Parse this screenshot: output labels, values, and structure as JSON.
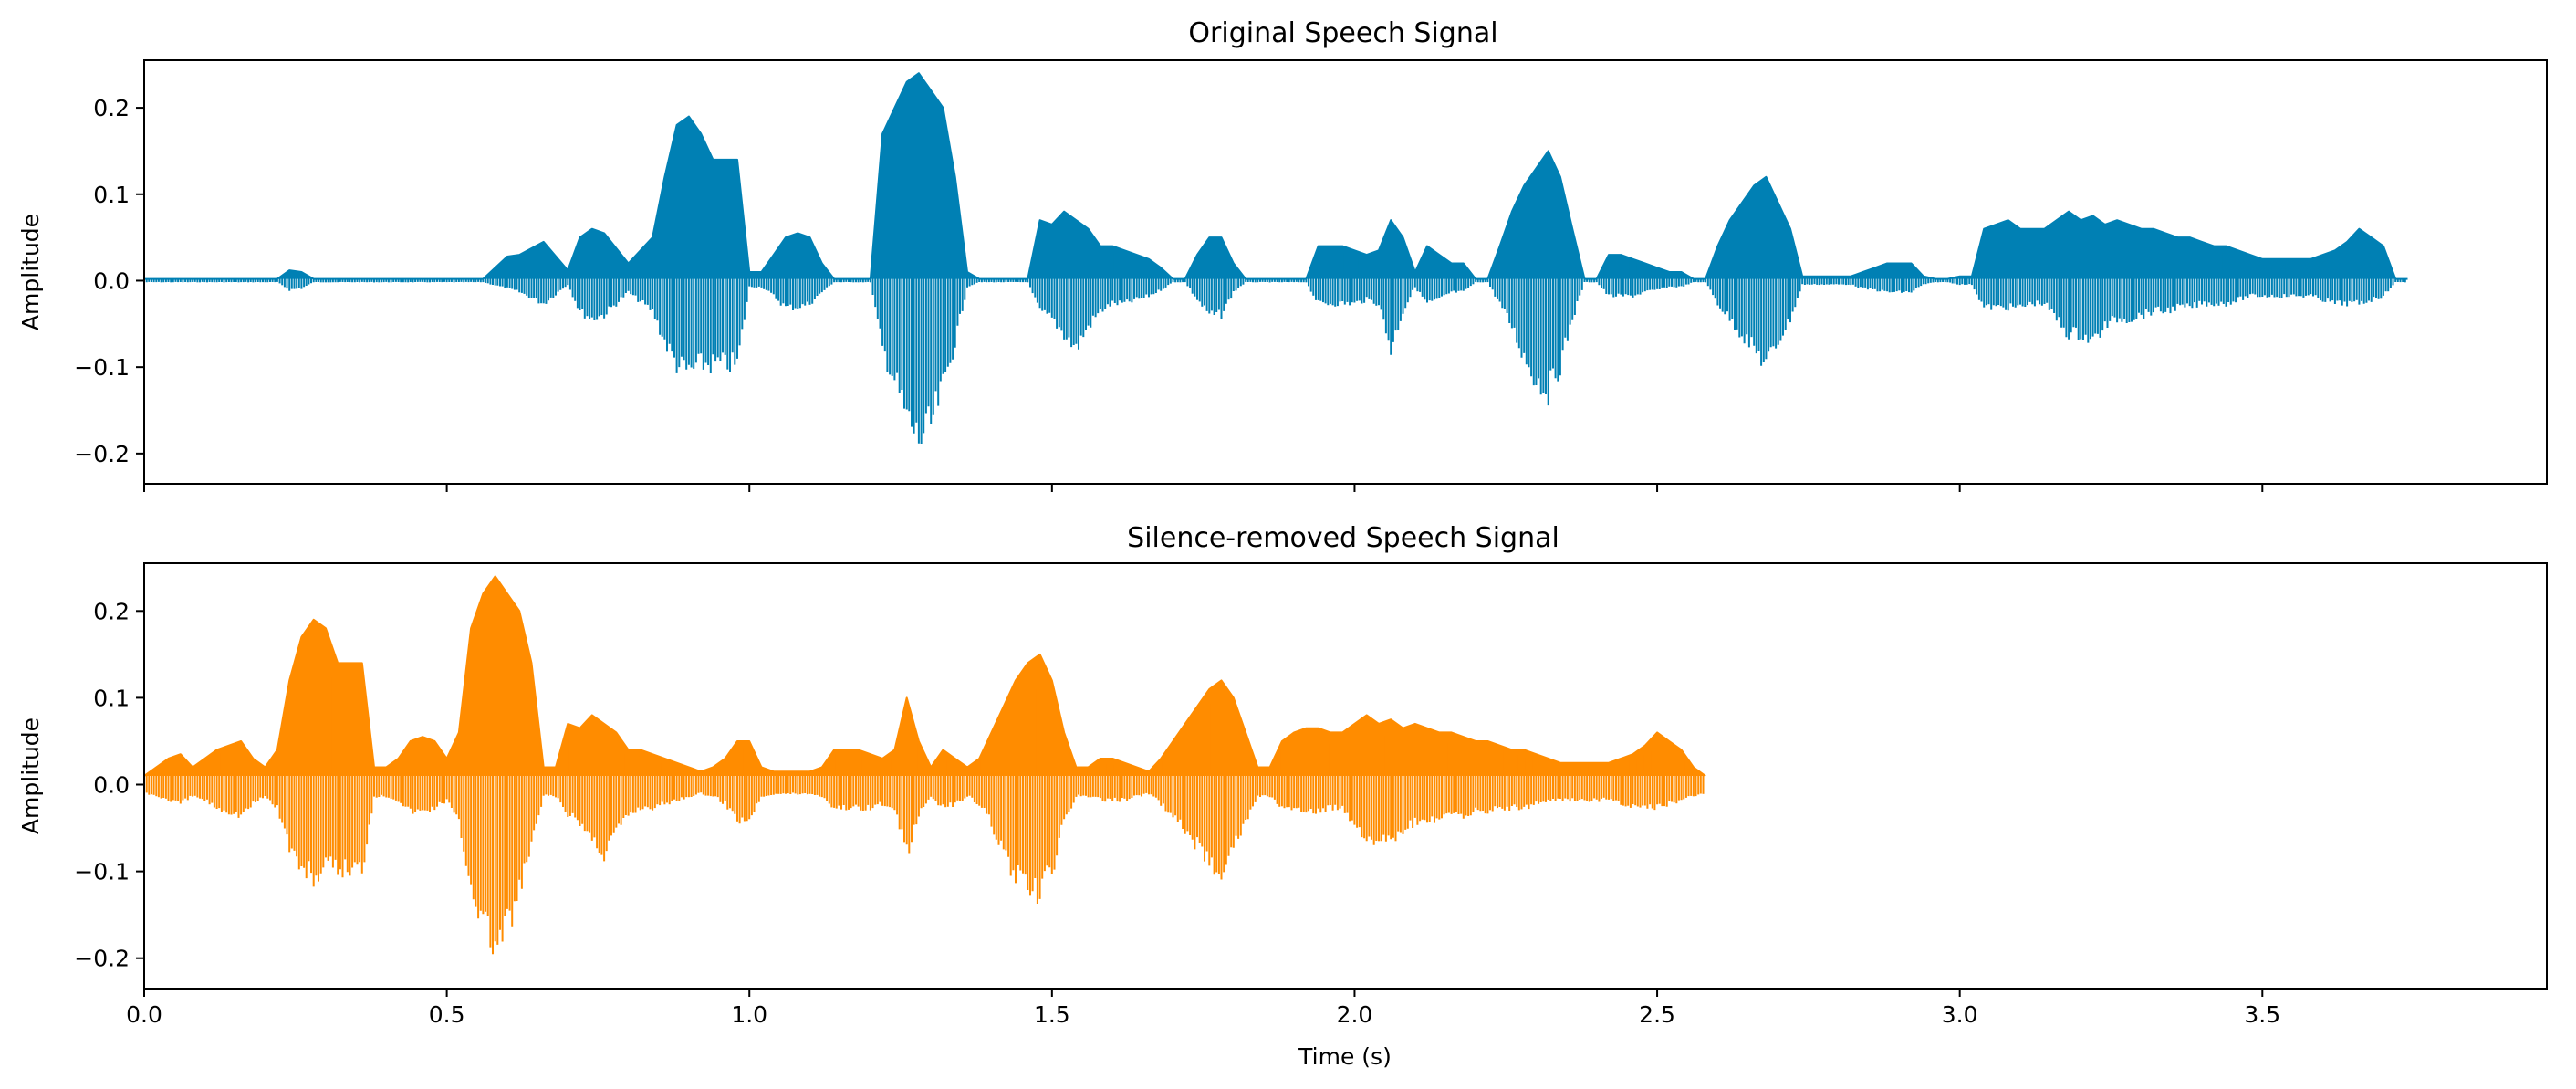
{
  "chart_data": [
    {
      "type": "line",
      "title": "Original Speech Signal",
      "xlabel": "",
      "ylabel": "Amplitude",
      "xlim": [
        0.0,
        3.97
      ],
      "ylim": [
        -0.235,
        0.255
      ],
      "yticks": [
        0.2,
        0.1,
        0.0,
        -0.1,
        -0.2
      ],
      "ytick_labels": [
        "0.2",
        "0.1",
        "0.0",
        "−0.1",
        "−0.2"
      ],
      "xticks": [
        0.0,
        0.5,
        1.0,
        1.5,
        2.0,
        2.5,
        3.0,
        3.5
      ],
      "xtick_labels_shown": false,
      "grid": false,
      "color": "#0080b4",
      "series": [
        {
          "envelope_t": [
            0.0,
            0.22,
            0.24,
            0.26,
            0.28,
            0.56,
            0.6,
            0.62,
            0.66,
            0.7,
            0.72,
            0.74,
            0.76,
            0.8,
            0.84,
            0.86,
            0.88,
            0.9,
            0.92,
            0.94,
            0.96,
            0.98,
            1.0,
            1.02,
            1.04,
            1.06,
            1.08,
            1.1,
            1.12,
            1.14,
            1.16,
            1.18,
            1.2,
            1.22,
            1.24,
            1.26,
            1.28,
            1.3,
            1.32,
            1.34,
            1.36,
            1.38,
            1.4,
            1.42,
            1.44,
            1.46,
            1.48,
            1.5,
            1.52,
            1.54,
            1.56,
            1.58,
            1.6,
            1.62,
            1.64,
            1.66,
            1.68,
            1.7,
            1.72,
            1.74,
            1.76,
            1.78,
            1.8,
            1.82,
            1.84,
            1.86,
            1.88,
            1.9,
            1.92,
            1.94,
            1.96,
            1.98,
            2.0,
            2.02,
            2.04,
            2.06,
            2.08,
            2.1,
            2.12,
            2.14,
            2.16,
            2.18,
            2.2,
            2.22,
            2.24,
            2.26,
            2.28,
            2.3,
            2.32,
            2.34,
            2.36,
            2.38,
            2.4,
            2.42,
            2.44,
            2.46,
            2.48,
            2.5,
            2.52,
            2.54,
            2.56,
            2.58,
            2.6,
            2.62,
            2.64,
            2.66,
            2.68,
            2.7,
            2.72,
            2.74,
            2.76,
            2.78,
            2.8,
            2.82,
            2.84,
            2.86,
            2.88,
            2.9,
            2.92,
            2.94,
            2.96,
            2.98,
            3.0,
            3.02,
            3.04,
            3.06,
            3.08,
            3.1,
            3.12,
            3.14,
            3.16,
            3.18,
            3.2,
            3.22,
            3.24,
            3.26,
            3.28,
            3.3,
            3.32,
            3.34,
            3.36,
            3.38,
            3.4,
            3.42,
            3.44,
            3.46,
            3.48,
            3.5,
            3.52,
            3.54,
            3.56,
            3.58,
            3.6,
            3.62,
            3.64,
            3.66,
            3.68,
            3.7,
            3.72,
            3.74,
            3.76,
            3.78,
            3.8,
            3.82,
            3.97
          ],
          "upper": [
            0.002,
            0.002,
            0.012,
            0.01,
            0.002,
            0.002,
            0.028,
            0.03,
            0.045,
            0.012,
            0.05,
            0.06,
            0.055,
            0.02,
            0.05,
            0.12,
            0.18,
            0.19,
            0.17,
            0.14,
            0.14,
            0.14,
            0.01,
            0.01,
            0.03,
            0.05,
            0.055,
            0.05,
            0.02,
            0.002,
            0.002,
            0.002,
            0.002,
            0.17,
            0.2,
            0.23,
            0.24,
            0.22,
            0.2,
            0.12,
            0.01,
            0.002,
            0.002,
            0.002,
            0.002,
            0.002,
            0.07,
            0.065,
            0.08,
            0.07,
            0.06,
            0.04,
            0.04,
            0.035,
            0.03,
            0.025,
            0.015,
            0.002,
            0.002,
            0.03,
            0.05,
            0.05,
            0.02,
            0.002,
            0.002,
            0.002,
            0.002,
            0.002,
            0.002,
            0.04,
            0.04,
            0.04,
            0.035,
            0.03,
            0.035,
            0.07,
            0.05,
            0.01,
            0.04,
            0.03,
            0.02,
            0.02,
            0.002,
            0.002,
            0.04,
            0.08,
            0.11,
            0.13,
            0.15,
            0.12,
            0.06,
            0.002,
            0.002,
            0.03,
            0.03,
            0.025,
            0.02,
            0.015,
            0.01,
            0.01,
            0.002,
            0.002,
            0.04,
            0.07,
            0.09,
            0.11,
            0.12,
            0.09,
            0.06,
            0.005,
            0.005,
            0.005,
            0.005,
            0.005,
            0.01,
            0.015,
            0.02,
            0.02,
            0.02,
            0.005,
            0.002,
            0.002,
            0.005,
            0.005,
            0.06,
            0.065,
            0.07,
            0.06,
            0.06,
            0.06,
            0.07,
            0.08,
            0.07,
            0.075,
            0.065,
            0.07,
            0.065,
            0.06,
            0.06,
            0.055,
            0.05,
            0.05,
            0.045,
            0.04,
            0.04,
            0.035,
            0.03,
            0.025,
            0.025,
            0.025,
            0.025,
            0.025,
            0.03,
            0.035,
            0.045,
            0.06,
            0.05,
            0.04,
            0.002,
            0.002
          ],
          "lower": [
            -0.002,
            -0.002,
            -0.012,
            -0.01,
            -0.002,
            -0.002,
            -0.01,
            -0.015,
            -0.03,
            -0.005,
            -0.04,
            -0.05,
            -0.045,
            -0.015,
            -0.04,
            -0.08,
            -0.11,
            -0.12,
            -0.11,
            -0.11,
            -0.11,
            -0.11,
            -0.008,
            -0.008,
            -0.02,
            -0.035,
            -0.035,
            -0.03,
            -0.015,
            -0.002,
            -0.002,
            -0.002,
            -0.002,
            -0.09,
            -0.13,
            -0.18,
            -0.21,
            -0.19,
            -0.14,
            -0.08,
            -0.008,
            -0.002,
            -0.002,
            -0.002,
            -0.002,
            -0.002,
            -0.04,
            -0.05,
            -0.07,
            -0.09,
            -0.06,
            -0.04,
            -0.03,
            -0.03,
            -0.025,
            -0.02,
            -0.012,
            -0.002,
            -0.002,
            -0.025,
            -0.045,
            -0.045,
            -0.015,
            -0.002,
            -0.002,
            -0.002,
            -0.002,
            -0.002,
            -0.002,
            -0.03,
            -0.03,
            -0.03,
            -0.03,
            -0.025,
            -0.03,
            -0.09,
            -0.04,
            -0.008,
            -0.03,
            -0.025,
            -0.015,
            -0.015,
            -0.002,
            -0.002,
            -0.03,
            -0.06,
            -0.1,
            -0.13,
            -0.145,
            -0.11,
            -0.05,
            -0.002,
            -0.002,
            -0.02,
            -0.02,
            -0.02,
            -0.015,
            -0.012,
            -0.008,
            -0.008,
            -0.002,
            -0.002,
            -0.03,
            -0.05,
            -0.07,
            -0.09,
            -0.11,
            -0.08,
            -0.05,
            -0.005,
            -0.005,
            -0.005,
            -0.005,
            -0.005,
            -0.01,
            -0.012,
            -0.015,
            -0.015,
            -0.015,
            -0.005,
            -0.002,
            -0.002,
            -0.005,
            -0.005,
            -0.035,
            -0.035,
            -0.035,
            -0.035,
            -0.03,
            -0.03,
            -0.05,
            -0.07,
            -0.07,
            -0.08,
            -0.06,
            -0.05,
            -0.05,
            -0.045,
            -0.04,
            -0.04,
            -0.035,
            -0.035,
            -0.03,
            -0.03,
            -0.03,
            -0.025,
            -0.02,
            -0.02,
            -0.02,
            -0.02,
            -0.02,
            -0.02,
            -0.025,
            -0.03,
            -0.03,
            -0.03,
            -0.025,
            -0.02,
            -0.002,
            -0.002
          ]
        }
      ]
    },
    {
      "type": "line",
      "title": "Silence-removed Speech Signal",
      "xlabel": "Time (s)",
      "ylabel": "Amplitude",
      "xlim": [
        0.0,
        3.97
      ],
      "ylim": [
        -0.235,
        0.255
      ],
      "yticks": [
        0.2,
        0.1,
        0.0,
        -0.1,
        -0.2
      ],
      "ytick_labels": [
        "0.2",
        "0.1",
        "0.0",
        "−0.1",
        "−0.2"
      ],
      "xticks": [
        0.0,
        0.5,
        1.0,
        1.5,
        2.0,
        2.5,
        3.0,
        3.5
      ],
      "xtick_labels": [
        "0.0",
        "0.5",
        "1.0",
        "1.5",
        "2.0",
        "2.5",
        "3.0",
        "3.5"
      ],
      "grid": false,
      "color": "#ff8c00",
      "series": [
        {
          "envelope_t": [
            0.0,
            0.02,
            0.04,
            0.06,
            0.08,
            0.1,
            0.12,
            0.14,
            0.16,
            0.18,
            0.2,
            0.22,
            0.24,
            0.26,
            0.28,
            0.3,
            0.32,
            0.34,
            0.36,
            0.38,
            0.4,
            0.42,
            0.44,
            0.46,
            0.48,
            0.5,
            0.52,
            0.54,
            0.56,
            0.58,
            0.6,
            0.62,
            0.64,
            0.66,
            0.68,
            0.7,
            0.72,
            0.74,
            0.76,
            0.78,
            0.8,
            0.82,
            0.84,
            0.86,
            0.88,
            0.9,
            0.92,
            0.94,
            0.96,
            0.98,
            1.0,
            1.02,
            1.04,
            1.06,
            1.08,
            1.1,
            1.12,
            1.14,
            1.16,
            1.18,
            1.2,
            1.22,
            1.24,
            1.26,
            1.28,
            1.3,
            1.32,
            1.34,
            1.36,
            1.38,
            1.4,
            1.42,
            1.44,
            1.46,
            1.48,
            1.5,
            1.52,
            1.54,
            1.56,
            1.58,
            1.6,
            1.62,
            1.64,
            1.66,
            1.68,
            1.7,
            1.72,
            1.74,
            1.76,
            1.78,
            1.8,
            1.82,
            1.84,
            1.86,
            1.88,
            1.9,
            1.92,
            1.94,
            1.96,
            1.98,
            2.0,
            2.02,
            2.04,
            2.06,
            2.08,
            2.1,
            2.12,
            2.14,
            2.16,
            2.18,
            2.2,
            2.22,
            2.24,
            2.26,
            2.28,
            2.3,
            2.32,
            2.34,
            2.36,
            2.38,
            2.4,
            2.42,
            2.44,
            2.46,
            2.48,
            2.5,
            2.52,
            2.54,
            2.56,
            2.58,
            2.59
          ],
          "upper": [
            0.01,
            0.02,
            0.03,
            0.035,
            0.02,
            0.03,
            0.04,
            0.045,
            0.05,
            0.03,
            0.02,
            0.04,
            0.12,
            0.17,
            0.19,
            0.18,
            0.14,
            0.14,
            0.14,
            0.02,
            0.02,
            0.03,
            0.05,
            0.055,
            0.05,
            0.03,
            0.06,
            0.18,
            0.22,
            0.24,
            0.22,
            0.2,
            0.14,
            0.02,
            0.02,
            0.07,
            0.065,
            0.08,
            0.07,
            0.06,
            0.04,
            0.04,
            0.035,
            0.03,
            0.025,
            0.02,
            0.015,
            0.02,
            0.03,
            0.05,
            0.05,
            0.02,
            0.015,
            0.015,
            0.015,
            0.015,
            0.02,
            0.04,
            0.04,
            0.04,
            0.035,
            0.03,
            0.04,
            0.1,
            0.05,
            0.02,
            0.04,
            0.03,
            0.02,
            0.03,
            0.06,
            0.09,
            0.12,
            0.14,
            0.15,
            0.12,
            0.06,
            0.02,
            0.02,
            0.03,
            0.03,
            0.025,
            0.02,
            0.015,
            0.03,
            0.05,
            0.07,
            0.09,
            0.11,
            0.12,
            0.1,
            0.06,
            0.02,
            0.02,
            0.05,
            0.06,
            0.065,
            0.065,
            0.06,
            0.06,
            0.07,
            0.08,
            0.07,
            0.075,
            0.065,
            0.07,
            0.065,
            0.06,
            0.06,
            0.055,
            0.05,
            0.05,
            0.045,
            0.04,
            0.04,
            0.035,
            0.03,
            0.025,
            0.025,
            0.025,
            0.025,
            0.025,
            0.03,
            0.035,
            0.045,
            0.06,
            0.05,
            0.04,
            0.02,
            0.01
          ],
          "lower": [
            -0.01,
            -0.015,
            -0.02,
            -0.025,
            -0.015,
            -0.02,
            -0.03,
            -0.035,
            -0.04,
            -0.025,
            -0.015,
            -0.03,
            -0.08,
            -0.11,
            -0.12,
            -0.11,
            -0.11,
            -0.11,
            -0.11,
            -0.015,
            -0.015,
            -0.02,
            -0.035,
            -0.035,
            -0.03,
            -0.02,
            -0.05,
            -0.13,
            -0.18,
            -0.21,
            -0.19,
            -0.14,
            -0.08,
            -0.015,
            -0.015,
            -0.04,
            -0.05,
            -0.07,
            -0.09,
            -0.06,
            -0.04,
            -0.03,
            -0.03,
            -0.025,
            -0.02,
            -0.015,
            -0.012,
            -0.015,
            -0.025,
            -0.045,
            -0.045,
            -0.015,
            -0.012,
            -0.012,
            -0.012,
            -0.012,
            -0.015,
            -0.03,
            -0.03,
            -0.03,
            -0.03,
            -0.025,
            -0.035,
            -0.09,
            -0.04,
            -0.015,
            -0.03,
            -0.025,
            -0.015,
            -0.025,
            -0.05,
            -0.09,
            -0.12,
            -0.14,
            -0.145,
            -0.11,
            -0.05,
            -0.015,
            -0.015,
            -0.02,
            -0.02,
            -0.02,
            -0.015,
            -0.012,
            -0.025,
            -0.04,
            -0.06,
            -0.08,
            -0.1,
            -0.11,
            -0.08,
            -0.05,
            -0.015,
            -0.015,
            -0.03,
            -0.035,
            -0.035,
            -0.035,
            -0.03,
            -0.03,
            -0.05,
            -0.07,
            -0.07,
            -0.08,
            -0.06,
            -0.05,
            -0.05,
            -0.045,
            -0.04,
            -0.04,
            -0.035,
            -0.035,
            -0.03,
            -0.03,
            -0.03,
            -0.025,
            -0.02,
            -0.02,
            -0.02,
            -0.02,
            -0.02,
            -0.02,
            -0.025,
            -0.03,
            -0.03,
            -0.03,
            -0.025,
            -0.02,
            -0.015,
            -0.01
          ]
        }
      ]
    }
  ]
}
